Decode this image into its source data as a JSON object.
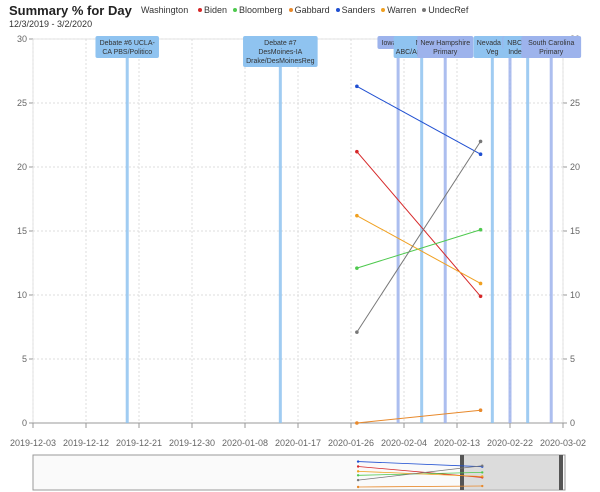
{
  "header": {
    "title": "Summary % for Day",
    "state": "Washington",
    "date_range": "12/3/2019 - 3/2/2020"
  },
  "legend": [
    {
      "name": "Biden",
      "color": "#d62728"
    },
    {
      "name": "Bloomberg",
      "color": "#4ec94e"
    },
    {
      "name": "Gabbard",
      "color": "#e8892b"
    },
    {
      "name": "Sanders",
      "color": "#1f4fd1"
    },
    {
      "name": "Warren",
      "color": "#f0a020"
    },
    {
      "name": "UndecRef",
      "color": "#777777"
    }
  ],
  "chart_data": {
    "type": "line",
    "title": "Summary % for Day",
    "xlim": [
      "2019-12-03",
      "2020-03-02"
    ],
    "ylim": [
      0,
      30
    ],
    "y_ticks": [
      0,
      5,
      10,
      15,
      20,
      25,
      30
    ],
    "x_ticks": [
      "2019-12-03",
      "2019-12-12",
      "2019-12-21",
      "2019-12-30",
      "2020-01-08",
      "2020-01-17",
      "2020-01-26",
      "2020-02-04",
      "2020-02-13",
      "2020-02-22",
      "2020-03-02"
    ],
    "grid": true,
    "x": [
      "2020-01-27",
      "2020-02-17"
    ],
    "series": [
      {
        "name": "Biden",
        "color": "#d62728",
        "values": [
          21.2,
          9.9
        ]
      },
      {
        "name": "Bloomberg",
        "color": "#4ec94e",
        "values": [
          12.1,
          15.1
        ]
      },
      {
        "name": "Gabbard",
        "color": "#e8892b",
        "values": [
          0,
          1.0
        ]
      },
      {
        "name": "Sanders",
        "color": "#1f4fd1",
        "values": [
          26.3,
          21.0
        ]
      },
      {
        "name": "Warren",
        "color": "#f0a020",
        "values": [
          16.2,
          10.9
        ]
      },
      {
        "name": "UndecRef",
        "color": "#777777",
        "values": [
          7.1,
          22.0
        ]
      }
    ],
    "events": [
      {
        "date": "2019-12-19",
        "lines": [
          "Debate #6 UCLA-",
          "CA PBS/Politico"
        ],
        "color": "#8fc3f0"
      },
      {
        "date": "2020-01-14",
        "lines": [
          "Debate #7",
          "DesMoines-IA",
          "Drake/DesMoinesReg"
        ],
        "color": "#8fc3f0"
      },
      {
        "date": "2020-02-03",
        "lines": [
          "Iowa Cauc"
        ],
        "color": "#9db3ec"
      },
      {
        "date": "2020-02-07",
        "lines": [
          "Mar",
          "ABC/AppleNews"
        ],
        "color": "#8fc3f0"
      },
      {
        "date": "2020-02-11",
        "lines": [
          "New Hampshire",
          "Primary"
        ],
        "color": "#9db3ec"
      },
      {
        "date": "2020-02-19",
        "lines": [
          "Nevada C",
          "Veg"
        ],
        "color": "#8fc3f0"
      },
      {
        "date": "2020-02-22",
        "lines": [
          "Ga"
        ],
        "color": "#9db3ec"
      },
      {
        "date": "2020-02-25",
        "lines": [
          "NBC/Nevada",
          "Independent"
        ],
        "color": "#8fc3f0"
      },
      {
        "date": "2020-02-29",
        "lines": [
          "South Carolina",
          "Primary"
        ],
        "color": "#9db3ec"
      }
    ]
  }
}
